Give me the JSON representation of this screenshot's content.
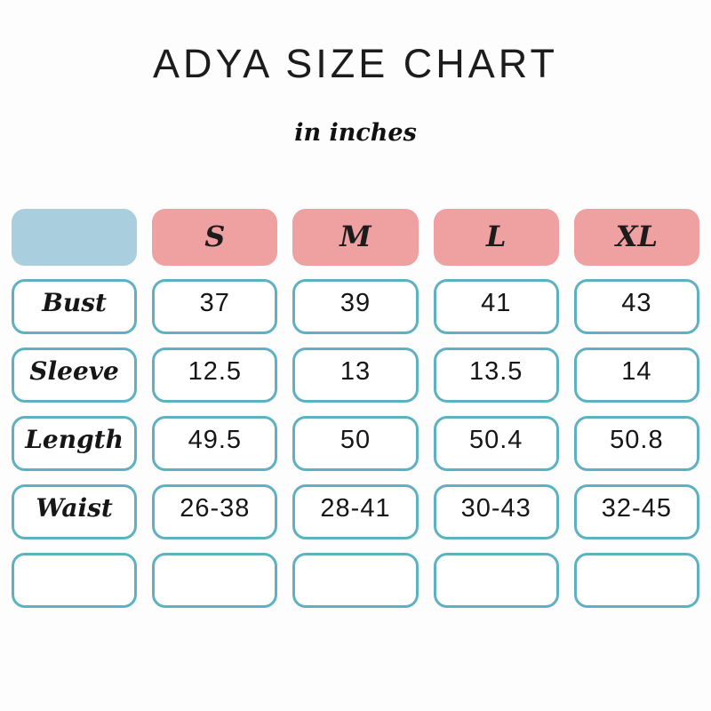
{
  "header": {
    "title": "ADYA SIZE CHART",
    "subtitle": "in inches"
  },
  "colors": {
    "header_blue": "#a9cedd",
    "header_pink": "#efa0a1",
    "cell_border": "#5eb1c0",
    "text": "#1c1c1c",
    "background": "#fdfdfd"
  },
  "table": {
    "corner_label": "",
    "columns": [
      "S",
      "M",
      "L",
      "XL"
    ],
    "rows": [
      {
        "label": "Bust",
        "values": [
          "37",
          "39",
          "41",
          "43"
        ]
      },
      {
        "label": "Sleeve",
        "values": [
          "12.5",
          "13",
          "13.5",
          "14"
        ]
      },
      {
        "label": "Length",
        "values": [
          "49.5",
          "50",
          "50.4",
          "50.8"
        ]
      },
      {
        "label": "Waist",
        "values": [
          "26-38",
          "28-41",
          "30-43",
          "32-45"
        ]
      },
      {
        "label": "",
        "values": [
          "",
          "",
          "",
          ""
        ]
      }
    ]
  },
  "chart_data": {
    "type": "table",
    "title": "ADYA SIZE CHART",
    "subtitle": "in inches",
    "unit": "inches",
    "columns": [
      "",
      "S",
      "M",
      "L",
      "XL"
    ],
    "rows": [
      [
        "Bust",
        "37",
        "39",
        "41",
        "43"
      ],
      [
        "Sleeve",
        "12.5",
        "13",
        "13.5",
        "14"
      ],
      [
        "Length",
        "49.5",
        "50",
        "50.4",
        "50.8"
      ],
      [
        "Waist",
        "26-38",
        "28-41",
        "30-43",
        "32-45"
      ],
      [
        "",
        "",
        "",
        "",
        ""
      ]
    ]
  }
}
